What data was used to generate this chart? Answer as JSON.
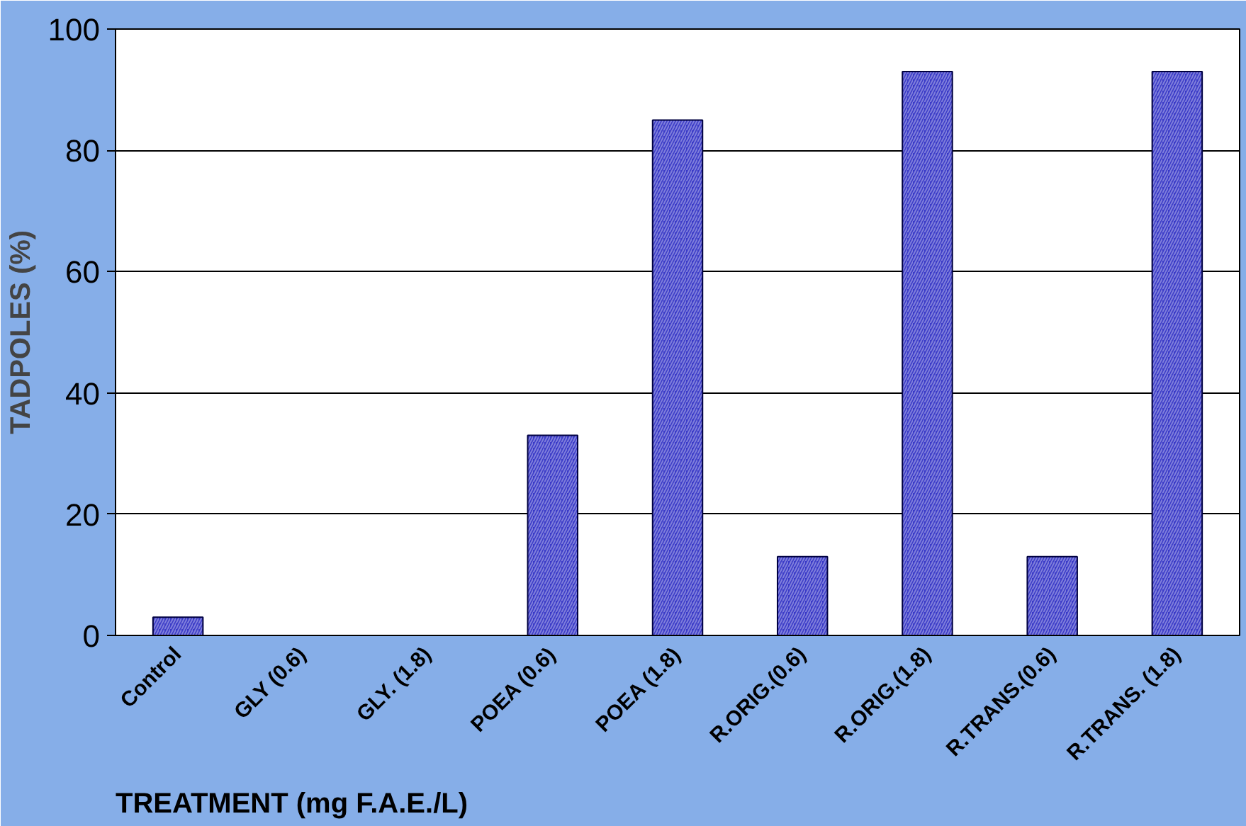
{
  "chart_data": {
    "type": "bar",
    "xlabel": "TREATMENT (mg F.A.E./L)",
    "ylabel": "TADPOLES (%)",
    "categories": [
      "Control",
      "GLY (0.6)",
      "GLY. (1.8)",
      "POEA (0.6)",
      "POEA (1.8)",
      "R.ORIG.(0.6)",
      "R.ORIG.(1.8)",
      "R.TRANS.(0.6)",
      "R.TRANS. (1.8)"
    ],
    "values": [
      3,
      0,
      0,
      33,
      85,
      13,
      93,
      13,
      93
    ],
    "color": "#3c3cc8",
    "ylim": [
      0,
      100
    ],
    "yticks": [
      0,
      20,
      40,
      60,
      80,
      100
    ],
    "grid": "y"
  }
}
